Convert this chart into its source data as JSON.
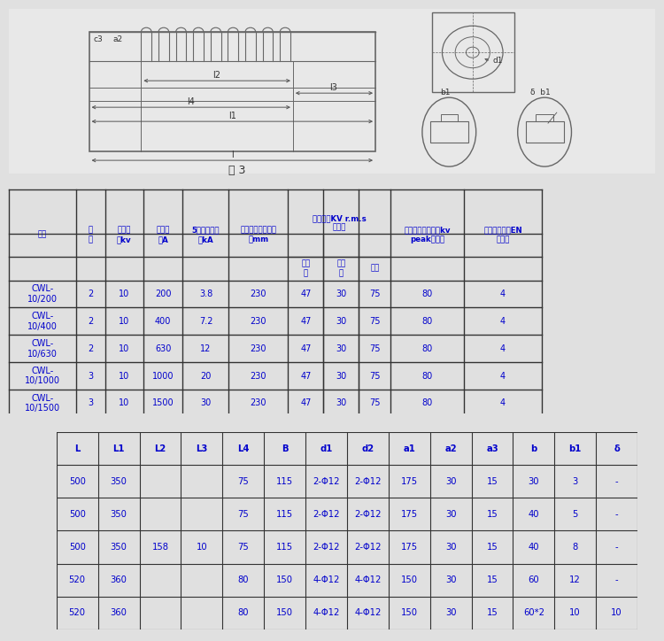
{
  "bg_color": "#e8e8e8",
  "table1_data": [
    [
      "CWL-\n10/200",
      "2",
      "10",
      "200",
      "3.8",
      "230",
      "47",
      "30",
      "75",
      "80",
      "4"
    ],
    [
      "CWL-\n10/400",
      "2",
      "10",
      "400",
      "7.2",
      "230",
      "47",
      "30",
      "75",
      "80",
      "4"
    ],
    [
      "CWL-\n10/630",
      "2",
      "10",
      "630",
      "12",
      "230",
      "47",
      "30",
      "75",
      "80",
      "4"
    ],
    [
      "CWL-\n10/1000",
      "3",
      "10",
      "1000",
      "20",
      "230",
      "47",
      "30",
      "75",
      "80",
      "4"
    ],
    [
      "CWL-\n10/1500",
      "3",
      "10",
      "1500",
      "30",
      "230",
      "47",
      "30",
      "75",
      "80",
      "4"
    ]
  ],
  "table2_headers": [
    "L",
    "L1",
    "L2",
    "L3",
    "L4",
    "B",
    "d1",
    "d2",
    "a1",
    "a2",
    "a3",
    "b",
    "b1",
    "δ"
  ],
  "table2_data": [
    [
      "500",
      "350",
      "",
      "",
      "75",
      "115",
      "2-Φ12",
      "2-Φ12",
      "175",
      "30",
      "15",
      "30",
      "3",
      "-"
    ],
    [
      "500",
      "350",
      "",
      "",
      "75",
      "115",
      "2-Φ12",
      "2-Φ12",
      "175",
      "30",
      "15",
      "40",
      "5",
      "-"
    ],
    [
      "500",
      "350",
      "158",
      "10",
      "75",
      "115",
      "2-Φ12",
      "2-Φ12",
      "175",
      "30",
      "15",
      "40",
      "8",
      "-"
    ],
    [
      "520",
      "360",
      "",
      "",
      "80",
      "150",
      "4-Φ12",
      "4-Φ12",
      "150",
      "30",
      "15",
      "60",
      "12",
      "-"
    ],
    [
      "520",
      "360",
      "",
      "",
      "80",
      "150",
      "4-Φ12",
      "4-Φ12",
      "150",
      "30",
      "15",
      "60*2",
      "10",
      "10"
    ]
  ],
  "text_color": "#0000cc",
  "border_color": "#333333"
}
